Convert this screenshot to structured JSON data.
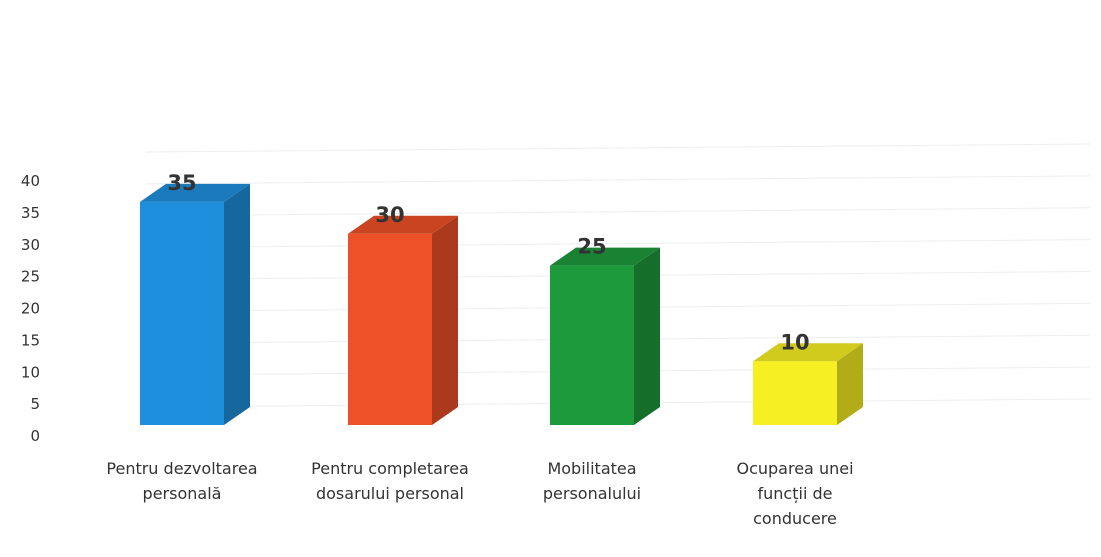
{
  "chart_data": {
    "type": "bar3d",
    "categories": [
      "Pentru dezvoltarea personală",
      "Pentru completarea dosarului personal",
      "Mobilitatea personalului",
      "Ocuparea unei funcții de conducere"
    ],
    "values": [
      35,
      30,
      25,
      10
    ],
    "colors": [
      "#1e8fdc",
      "#ee5028",
      "#1d9a3c",
      "#f6ef22"
    ],
    "ylim": [
      0,
      40
    ],
    "yticks": [
      0,
      5,
      10,
      15,
      20,
      25,
      30,
      35,
      40
    ],
    "grid": true
  }
}
